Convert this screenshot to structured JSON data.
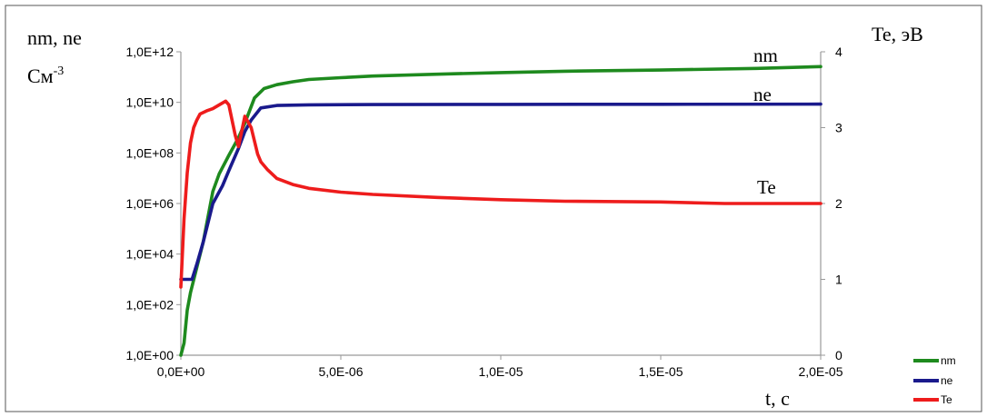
{
  "chart_data": {
    "type": "line",
    "left_label": "nm, ne",
    "left_unit_base": "См",
    "left_unit_exp": "-3",
    "right_label": "Te, эВ",
    "xlabel": "t, c",
    "x_ticks": [
      "0,0E+00",
      "5,0E-06",
      "1,0E-05",
      "1,5E-05",
      "2,0E-05"
    ],
    "x_tick_values": [
      0,
      5e-06,
      1e-05,
      1.5e-05,
      2e-05
    ],
    "xlim": [
      0,
      2e-05
    ],
    "y_left_scale": "log",
    "y_left_ticks": [
      "1,0E+00",
      "1,0E+02",
      "1,0E+04",
      "1,0E+06",
      "1,0E+08",
      "1,0E+10",
      "1,0E+12"
    ],
    "y_left_tick_values": [
      1,
      100,
      10000,
      1000000,
      100000000,
      10000000000,
      1000000000000
    ],
    "y_left_lim": [
      1,
      1000000000000
    ],
    "y_right_ticks": [
      "0",
      "1",
      "2",
      "3",
      "4"
    ],
    "y_right_tick_values": [
      0,
      1,
      2,
      3,
      4
    ],
    "y_right_lim": [
      0,
      4
    ],
    "grid": false,
    "legend_position": "bottom-right",
    "series": [
      {
        "name": "nm",
        "axis": "left",
        "color": "#1e8a1e",
        "annotation": "nm",
        "x": [
          0,
          1e-07,
          2e-07,
          3e-07,
          5e-07,
          7e-07,
          1e-06,
          1.2e-06,
          1.5e-06,
          1.8e-06,
          2e-06,
          2.3e-06,
          2.6e-06,
          3e-06,
          3.5e-06,
          4e-06,
          5e-06,
          6e-06,
          8e-06,
          1e-05,
          1.2e-05,
          1.5e-05,
          1.8e-05,
          2e-05
        ],
        "y": [
          1,
          3,
          60,
          300,
          3000,
          30000,
          3000000,
          15000000,
          80000000,
          400000000,
          1500000000,
          15000000000,
          35000000000,
          50000000000,
          65000000000,
          80000000000,
          95000000000,
          110000000000,
          130000000000,
          150000000000,
          170000000000,
          190000000000,
          220000000000,
          260000000000
        ]
      },
      {
        "name": "ne",
        "axis": "left",
        "color": "#1a1a8c",
        "annotation": "ne",
        "x": [
          0,
          2e-07,
          3.5e-07,
          5e-07,
          7e-07,
          1e-06,
          1.3e-06,
          1.5e-06,
          1.8e-06,
          2e-06,
          2.2e-06,
          2.5e-06,
          3e-06,
          4e-06,
          6e-06,
          1e-05,
          1.5e-05,
          2e-05
        ],
        "y": [
          1000,
          1000,
          1000,
          4000,
          30000,
          1000000,
          5000000,
          20000000,
          150000000,
          700000000,
          2000000000,
          6000000000,
          7500000000,
          8000000000,
          8200000000,
          8300000000,
          8400000000,
          8500000000
        ]
      },
      {
        "name": "Te",
        "axis": "right",
        "color": "#ee1c1c",
        "annotation": "Te",
        "x": [
          0,
          1e-07,
          2e-07,
          3e-07,
          4e-07,
          5e-07,
          6e-07,
          8e-07,
          1e-06,
          1.2e-06,
          1.4e-06,
          1.5e-06,
          1.6e-06,
          1.7e-06,
          1.8e-06,
          1.9e-06,
          2e-06,
          2.2e-06,
          2.4e-06,
          2.5e-06,
          2.7e-06,
          3e-06,
          3.5e-06,
          4e-06,
          5e-06,
          6e-06,
          8e-06,
          1e-05,
          1.2e-05,
          1.5e-05,
          1.7e-05,
          2e-05
        ],
        "y": [
          0.9,
          1.8,
          2.4,
          2.8,
          3.0,
          3.1,
          3.18,
          3.22,
          3.25,
          3.3,
          3.35,
          3.3,
          3.1,
          2.9,
          2.75,
          2.95,
          3.15,
          3.0,
          2.65,
          2.55,
          2.45,
          2.33,
          2.25,
          2.2,
          2.15,
          2.12,
          2.08,
          2.05,
          2.03,
          2.02,
          2.0,
          2.0
        ]
      }
    ]
  }
}
